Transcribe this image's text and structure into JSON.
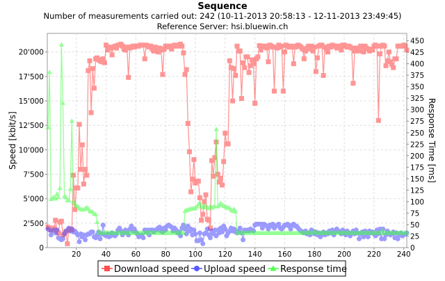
{
  "chart_data": {
    "type": "line",
    "title": "Sequence",
    "subtitles": [
      "Number of measurements carried out: 242 (10-11-2013 20:58:13 - 12-11-2013 23:49:45)",
      "Reference Server: hsi.bluewin.ch"
    ],
    "xlabel": "",
    "ylabel_left": "Speed [kbit/s]",
    "ylabel_right": "Response Time [ms]",
    "xlim": [
      0.5,
      242
    ],
    "ylim_left": [
      0,
      21900
    ],
    "ylim_right": [
      0,
      466
    ],
    "grid": true,
    "legend_placement": "bottom",
    "x_ticks": [
      20,
      40,
      60,
      80,
      100,
      120,
      140,
      160,
      180,
      200,
      220,
      240
    ],
    "x_tick_labels": [
      "20",
      "40",
      "60",
      "80",
      "100",
      "120",
      "140",
      "160",
      "180",
      "200",
      "220",
      "240"
    ],
    "y_left_ticks": [
      0,
      2500,
      5000,
      7500,
      10000,
      12500,
      15000,
      17500,
      20000
    ],
    "y_left_tick_labels": [
      "0",
      "2'500",
      "5'000",
      "7'500",
      "10'000",
      "12'500",
      "15'000",
      "17'500",
      "20'000"
    ],
    "y_right_ticks": [
      0,
      25,
      50,
      75,
      100,
      125,
      150,
      175,
      200,
      225,
      250,
      275,
      300,
      325,
      350,
      375,
      400,
      425,
      450
    ],
    "y_right_tick_labels": [
      "0",
      "25",
      "50",
      "75",
      "100",
      "125",
      "150",
      "175",
      "200",
      "225",
      "250",
      "275",
      "300",
      "325",
      "350",
      "375",
      "400",
      "425",
      "450"
    ],
    "series": [
      {
        "name": "Download speed",
        "axis": "left",
        "marker": "square",
        "color": "#ff4040",
        "values": [
          2100,
          2000,
          1800,
          1900,
          2000,
          2800,
          1700,
          1500,
          2600,
          2700,
          1300,
          1400,
          1600,
          400,
          1800,
          1900,
          1800,
          7400,
          3900,
          6100,
          6100,
          12600,
          8000,
          10500,
          6500,
          8000,
          7400,
          18100,
          19100,
          13800,
          18300,
          16300,
          19300,
          19400,
          19200,
          19100,
          19000,
          19300,
          18900,
          20700,
          20200,
          20500,
          20400,
          19700,
          20500,
          20600,
          20400,
          20700,
          20700,
          20800,
          20600,
          20300,
          20200,
          20500,
          17400,
          20400,
          20500,
          20600,
          20500,
          20600,
          20600,
          20600,
          20700,
          20700,
          20700,
          19300,
          20700,
          20600,
          20500,
          20600,
          20300,
          20100,
          20500,
          20300,
          20000,
          20400,
          20200,
          17700,
          20300,
          20600,
          20600,
          20500,
          20600,
          20300,
          20600,
          20700,
          20600,
          20700,
          20600,
          20800,
          20600,
          19900,
          17700,
          18200,
          12700,
          9800,
          5700,
          7000,
          9000,
          6600,
          6800,
          6800,
          5100,
          2800,
          3400,
          4700,
          5400,
          2900,
          2800,
          2000,
          8900,
          7300,
          9200,
          10800,
          7500,
          6700,
          7100,
          6400,
          8800,
          11700,
          10600,
          10600,
          19100,
          18400,
          15000,
          18300,
          17600,
          20600,
          20100,
          20100,
          15250,
          18900,
          18400,
          19500,
          19500,
          17900,
          18600,
          19200,
          18800,
          14750,
          19300,
          19500,
          20650,
          20200,
          20600,
          20500,
          20600,
          20400,
          19000,
          20700,
          20600,
          20500,
          16000,
          20500,
          20400,
          20700,
          20500,
          20600,
          16000,
          20000,
          20700,
          20600,
          20500,
          20500,
          20600,
          18800,
          20500,
          20600,
          20700,
          20600,
          20500,
          20300,
          19300,
          20100,
          20400,
          20600,
          20300,
          20600,
          20100,
          20500,
          18000,
          19400,
          20600,
          20700,
          20700,
          17600,
          20500,
          20300,
          20000,
          20600,
          20500,
          20700,
          20600,
          20600,
          20400,
          20600,
          20500,
          20200,
          20700,
          20700,
          20600,
          20500,
          20600,
          20500,
          20400,
          16800,
          20100,
          20400,
          20300,
          20100,
          20600,
          20500,
          20000,
          20600,
          20400,
          20300,
          20100,
          20300,
          20200,
          20600,
          20700,
          20600,
          13000,
          19800,
          20600,
          20700,
          20600,
          18600,
          19100,
          20000,
          19000,
          18700,
          18400,
          19300,
          19300,
          20600,
          20600,
          20600,
          20600,
          20700,
          20600,
          20200
        ]
      },
      {
        "name": "Upload speed",
        "axis": "left",
        "marker": "circle",
        "color": "#4a4aff",
        "values": [
          1900,
          1800,
          1300,
          1700,
          1800,
          1500,
          1800,
          1000,
          900,
          800,
          900,
          1400,
          1700,
          1800,
          2000,
          1700,
          1900,
          1600,
          1700,
          1500,
          1300,
          600,
          1400,
          1100,
          1300,
          800,
          1300,
          1400,
          1400,
          1600,
          1600,
          1100,
          1000,
          1300,
          1600,
          900,
          1400,
          2300,
          1300,
          1200,
          1400,
          1100,
          1200,
          1500,
          1300,
          1200,
          1400,
          1800,
          2000,
          1700,
          1300,
          1500,
          1800,
          1600,
          1300,
          1900,
          2200,
          1700,
          1900,
          1600,
          1400,
          1100,
          1200,
          1300,
          1000,
          1800,
          1600,
          1800,
          1300,
          1800,
          1800,
          1600,
          1800,
          1800,
          2000,
          2100,
          1700,
          1600,
          2000,
          1800,
          2200,
          2300,
          2200,
          2100,
          1700,
          2000,
          1800,
          1500,
          1600,
          1200,
          2000,
          2300,
          1900,
          1400,
          2200,
          1700,
          1900,
          1300,
          1800,
          1400,
          700,
          700,
          1500,
          800,
          400,
          1400,
          1500,
          1900,
          1300,
          1000,
          1700,
          1400,
          1800,
          1200,
          1800,
          1500,
          2000,
          1600,
          2200,
          1900,
          1200,
          1500,
          1700,
          2000,
          1700,
          1900,
          1600,
          1500,
          1700,
          2000,
          1500,
          800,
          1800,
          1700,
          1800,
          1700,
          1900,
          1800,
          1700,
          2300,
          2400,
          2400,
          2400,
          2400,
          2000,
          2400,
          2300,
          2200,
          1900,
          2300,
          2200,
          2400,
          2000,
          2200,
          2300,
          2400,
          2000,
          1900,
          2100,
          2300,
          2300,
          2400,
          2200,
          1900,
          2300,
          2400,
          2200,
          2200,
          2000,
          1800,
          1700,
          1600,
          1500,
          1700,
          1400,
          1500,
          1300,
          1800,
          1700,
          1400,
          1600,
          1300,
          1500,
          1100,
          1400,
          1600,
          1300,
          1500,
          1400,
          1700,
          1500,
          1800,
          1300,
          1600,
          1900,
          1700,
          1600,
          1400,
          1800,
          1500,
          1300,
          1700,
          1500,
          1200,
          1500,
          1700,
          1400,
          1800,
          1500,
          900,
          1400,
          1600,
          1100,
          1700,
          1400,
          1100,
          1700,
          1500,
          1600,
          1400,
          1200,
          1800,
          1400,
          1900,
          900,
          1900,
          900,
          1300,
          1700,
          1500,
          1300,
          1400,
          1600,
          1000,
          1500,
          900,
          1300,
          1500,
          1200,
          1300,
          1400,
          1500
        ]
      },
      {
        "name": "Response time",
        "axis": "right",
        "marker": "triangle",
        "color": "#40ff40",
        "values": [
          262,
          382,
          106,
          108,
          110,
          107,
          117,
          110,
          130,
          442,
          315,
          112,
          110,
          103,
          103,
          128,
          276,
          100,
          96,
          92,
          90,
          86,
          84,
          83,
          83,
          85,
          88,
          85,
          80,
          79,
          78,
          74,
          73,
          56,
          33,
          33,
          33,
          32,
          33,
          33,
          33,
          32,
          33,
          33,
          32,
          33,
          32,
          33,
          33,
          32,
          33,
          33,
          32,
          33,
          33,
          32,
          33,
          33,
          32,
          33,
          33,
          32,
          33,
          33,
          32,
          33,
          33,
          32,
          35,
          33,
          33,
          34,
          33,
          32,
          33,
          33,
          32,
          33,
          33,
          32,
          33,
          33,
          32,
          33,
          33,
          32,
          33,
          33,
          32,
          33,
          33,
          32,
          80,
          82,
          82,
          84,
          85,
          85,
          86,
          86,
          90,
          95,
          97,
          90,
          88,
          92,
          90,
          88,
          86,
          90,
          87,
          89,
          90,
          258,
          90,
          93,
          97,
          93,
          91,
          90,
          88,
          87,
          86,
          83,
          80,
          84,
          79,
          33,
          33,
          32,
          33,
          33,
          32,
          33,
          33,
          32,
          33,
          33,
          32,
          33,
          32,
          32,
          32,
          32,
          32,
          32,
          32,
          32,
          32,
          32,
          32,
          32,
          32,
          32,
          32,
          32,
          32,
          32,
          32,
          32,
          32,
          32,
          32,
          32,
          32,
          32,
          32,
          32,
          32,
          32,
          33,
          33,
          32,
          33,
          33,
          33,
          32,
          33,
          33,
          36,
          33,
          33,
          32,
          33,
          33,
          32,
          33,
          33,
          32,
          33,
          33,
          32,
          33,
          33,
          32,
          33,
          33,
          32,
          33,
          33,
          32,
          33,
          33,
          32,
          33,
          33,
          32,
          33,
          33,
          32,
          33,
          33,
          32,
          33,
          33,
          32,
          33,
          33,
          32,
          33,
          33,
          32,
          33,
          33,
          32,
          38,
          33,
          32,
          33,
          33,
          32,
          33,
          33,
          32,
          33,
          33,
          32,
          33,
          33,
          32,
          33,
          33
        ]
      }
    ]
  }
}
